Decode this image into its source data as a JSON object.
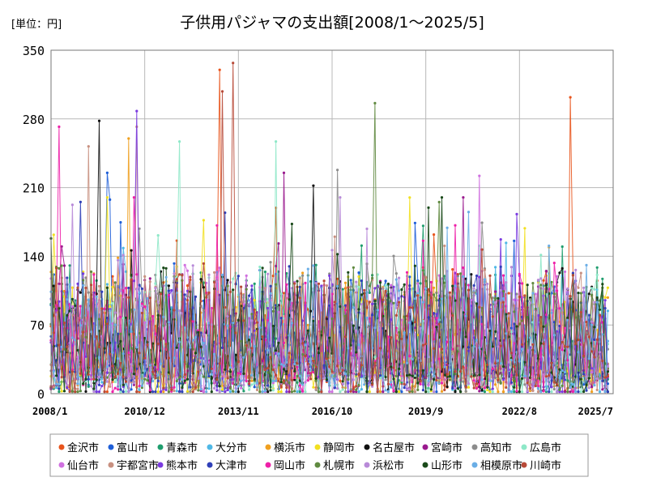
{
  "chart_data": {
    "type": "line",
    "title": "子供用パジャマの支出額[2008/1～2025/5]",
    "unit_label": "[単位：円]",
    "yticks": [
      0,
      70,
      140,
      210,
      280,
      350
    ],
    "ylim": [
      0,
      350
    ],
    "x_range": [
      "2008/1",
      "2025/7"
    ],
    "xticks": [
      "2008/1",
      "2010/12",
      "2013/11",
      "2016/10",
      "2019/9",
      "2022/8",
      "2025/7"
    ],
    "grid": true,
    "legend_position": "bottom",
    "series": [
      {
        "name": "金沢市",
        "color": "#e8541c",
        "peaks": [
          [
            63,
            330
          ],
          [
            194,
            302
          ]
        ]
      },
      {
        "name": "富山市",
        "color": "#1f5fd8",
        "peaks": [
          [
            21,
            225
          ]
        ]
      },
      {
        "name": "青森市",
        "color": "#1f9e6e",
        "peaks": []
      },
      {
        "name": "大分市",
        "color": "#4fb8e6",
        "peaks": []
      },
      {
        "name": "横浜市",
        "color": "#f0a020",
        "peaks": [
          [
            29,
            260
          ]
        ]
      },
      {
        "name": "静岡市",
        "color": "#f2e020",
        "peaks": []
      },
      {
        "name": "名古屋市",
        "color": "#111111",
        "peaks": [
          [
            18,
            278
          ],
          [
            98,
            212
          ]
        ]
      },
      {
        "name": "宮崎市",
        "color": "#9a1a8e",
        "peaks": [
          [
            87,
            225
          ]
        ]
      },
      {
        "name": "高知市",
        "color": "#8c8c8c",
        "peaks": [
          [
            107,
            228
          ]
        ]
      },
      {
        "name": "広島市",
        "color": "#8ee8c8",
        "peaks": [
          [
            48,
            257
          ],
          [
            84,
            257
          ]
        ]
      },
      {
        "name": "仙台市",
        "color": "#d070e0",
        "peaks": [
          [
            160,
            222
          ]
        ]
      },
      {
        "name": "宇都宮市",
        "color": "#c89080",
        "peaks": [
          [
            14,
            252
          ],
          [
            32,
            272
          ]
        ]
      },
      {
        "name": "熊本市",
        "color": "#7a3ae0",
        "peaks": [
          [
            32,
            288
          ]
        ]
      },
      {
        "name": "大津市",
        "color": "#3040b8",
        "peaks": []
      },
      {
        "name": "岡山市",
        "color": "#ee20a8",
        "peaks": [
          [
            3,
            272
          ]
        ]
      },
      {
        "name": "札幌市",
        "color": "#608a40",
        "peaks": [
          [
            121,
            296
          ]
        ]
      },
      {
        "name": "浜松市",
        "color": "#b88ad8",
        "peaks": []
      },
      {
        "name": "山形市",
        "color": "#1a4a1a",
        "peaks": []
      },
      {
        "name": "相模原市",
        "color": "#6aaee6",
        "peaks": []
      },
      {
        "name": "川崎市",
        "color": "#b84a38",
        "peaks": [
          [
            64,
            308
          ],
          [
            68,
            337
          ]
        ]
      }
    ]
  }
}
